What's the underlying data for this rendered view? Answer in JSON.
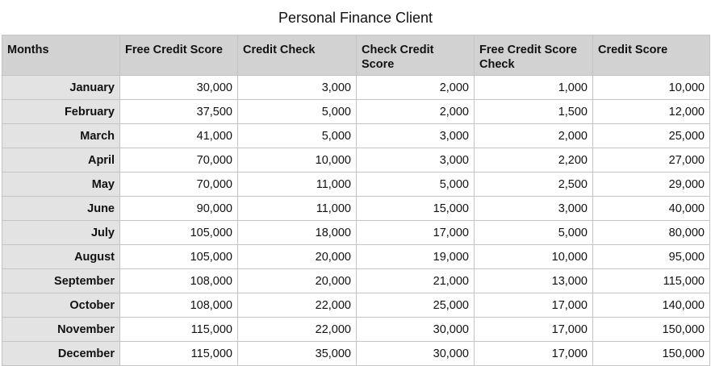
{
  "chart_data": {
    "type": "table",
    "title": "Personal Finance Client",
    "columns": [
      "Months",
      "Free Credit Score",
      "Credit Check",
      "Check Credit Score",
      "Free Credit Score Check",
      "Credit Score"
    ],
    "rows": [
      [
        "January",
        "30,000",
        "3,000",
        "2,000",
        "1,000",
        "10,000"
      ],
      [
        "February",
        "37,500",
        "5,000",
        "2,000",
        "1,500",
        "12,000"
      ],
      [
        "March",
        "41,000",
        "5,000",
        "3,000",
        "2,000",
        "25,000"
      ],
      [
        "April",
        "70,000",
        "10,000",
        "3,000",
        "2,200",
        "27,000"
      ],
      [
        "May",
        "70,000",
        "11,000",
        "5,000",
        "2,500",
        "29,000"
      ],
      [
        "June",
        "90,000",
        "11,000",
        "15,000",
        "3,000",
        "40,000"
      ],
      [
        "July",
        "105,000",
        "18,000",
        "17,000",
        "5,000",
        "80,000"
      ],
      [
        "August",
        "105,000",
        "20,000",
        "19,000",
        "10,000",
        "95,000"
      ],
      [
        "September",
        "108,000",
        "20,000",
        "21,000",
        "13,000",
        "115,000"
      ],
      [
        "October",
        "108,000",
        "22,000",
        "25,000",
        "17,000",
        "140,000"
      ],
      [
        "November",
        "115,000",
        "22,000",
        "30,000",
        "17,000",
        "150,000"
      ],
      [
        "December",
        "115,000",
        "35,000",
        "30,000",
        "17,000",
        "150,000"
      ]
    ]
  }
}
